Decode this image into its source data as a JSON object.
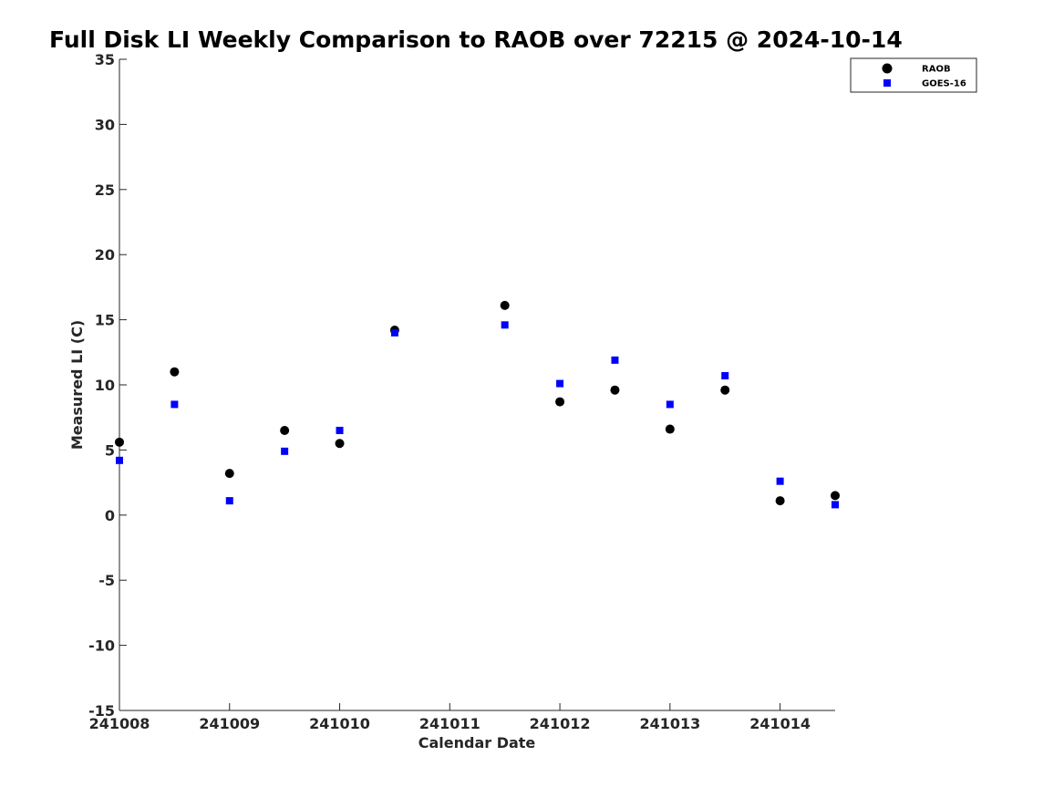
{
  "chart_data": {
    "type": "scatter",
    "title": "Full Disk LI Weekly Comparison to RAOB over 72215 @ 2024-10-14",
    "xlabel": "Calendar Date",
    "ylabel": "Measured LI (C)",
    "xlim": [
      0,
      6.5
    ],
    "ylim": [
      -15,
      35
    ],
    "x_ticks": [
      0,
      1,
      2,
      3,
      4,
      5,
      6
    ],
    "x_tick_labels": [
      "241008",
      "241009",
      "241010",
      "241011",
      "241012",
      "241013",
      "241014"
    ],
    "y_ticks": [
      -15,
      -10,
      -5,
      0,
      5,
      10,
      15,
      20,
      25,
      30,
      35
    ],
    "y_tick_labels": [
      "-15",
      "-10",
      "-5",
      "0",
      "5",
      "10",
      "15",
      "20",
      "25",
      "30",
      "35"
    ],
    "grid": false,
    "legend_position": "top-right",
    "series": [
      {
        "name": "RAOB",
        "marker": "circle",
        "color": "#000000",
        "x": [
          0,
          0.5,
          1,
          1.5,
          2,
          2.5,
          3.5,
          4,
          4.5,
          5,
          5.5,
          6,
          6.5
        ],
        "y": [
          5.6,
          11.0,
          3.2,
          6.5,
          5.5,
          14.2,
          16.1,
          8.7,
          9.6,
          6.6,
          9.6,
          1.1,
          1.5
        ]
      },
      {
        "name": "GOES-16",
        "marker": "square",
        "color": "#0000ff",
        "x": [
          0,
          0.5,
          1,
          1.5,
          2,
          2.5,
          3.5,
          4,
          4.5,
          5,
          5.5,
          6,
          6.5
        ],
        "y": [
          4.2,
          8.5,
          1.1,
          4.9,
          6.5,
          14.0,
          14.6,
          10.1,
          11.9,
          8.5,
          10.7,
          2.6,
          0.8
        ]
      }
    ]
  }
}
